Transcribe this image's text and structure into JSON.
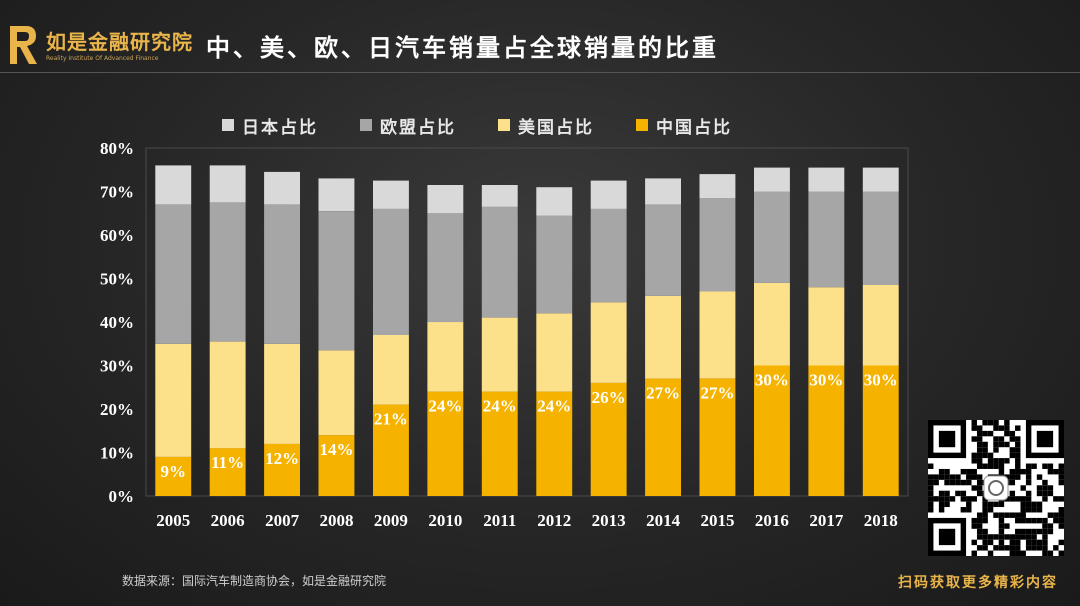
{
  "logo": {
    "name_cn": "如是金融研究院",
    "name_en": "Reality Institute Of Advanced Finance",
    "icon": "logo-r-icon"
  },
  "title": "中、美、欧、日汽车销量占全球销量的比重",
  "source": "数据来源：国际汽车制造商协会，如是金融研究院",
  "cta": "扫码获取更多精彩内容",
  "qr_icon": "qr-code-icon",
  "chart_data": {
    "type": "bar",
    "stacked": true,
    "categories": [
      "2005",
      "2006",
      "2007",
      "2008",
      "2009",
      "2010",
      "2011",
      "2012",
      "2013",
      "2014",
      "2015",
      "2016",
      "2017",
      "2018"
    ],
    "series": [
      {
        "name": "中国占比",
        "color": "#f5b300",
        "values": [
          9,
          11,
          12,
          14,
          21,
          24,
          24,
          24,
          26,
          27,
          27,
          30,
          30,
          30
        ],
        "labels": [
          "9%",
          "11%",
          "12%",
          "14%",
          "21%",
          "24%",
          "24%",
          "24%",
          "26%",
          "27%",
          "27%",
          "30%",
          "30%",
          "30%"
        ]
      },
      {
        "name": "美国占比",
        "color": "#fde08a",
        "values": [
          26,
          24.5,
          23,
          19.5,
          16,
          16,
          17,
          18,
          18.5,
          19,
          20,
          19,
          18,
          18.5
        ]
      },
      {
        "name": "欧盟占比",
        "color": "#a6a6a6",
        "values": [
          32,
          32,
          32,
          32,
          29,
          25,
          25.5,
          22.5,
          21.5,
          21,
          21.5,
          21,
          22,
          21.5
        ]
      },
      {
        "name": "日本占比",
        "color": "#d9d9d9",
        "values": [
          9,
          8.5,
          7.5,
          7.5,
          6.5,
          6.5,
          5,
          6.5,
          6.5,
          6,
          5.5,
          5.5,
          5.5,
          5.5
        ]
      }
    ],
    "legend_order": [
      "日本占比",
      "欧盟占比",
      "美国占比",
      "中国占比"
    ],
    "yticks": [
      "0%",
      "10%",
      "20%",
      "30%",
      "40%",
      "50%",
      "60%",
      "70%",
      "80%"
    ],
    "ylim": [
      0,
      80
    ],
    "legend_position": "top"
  }
}
